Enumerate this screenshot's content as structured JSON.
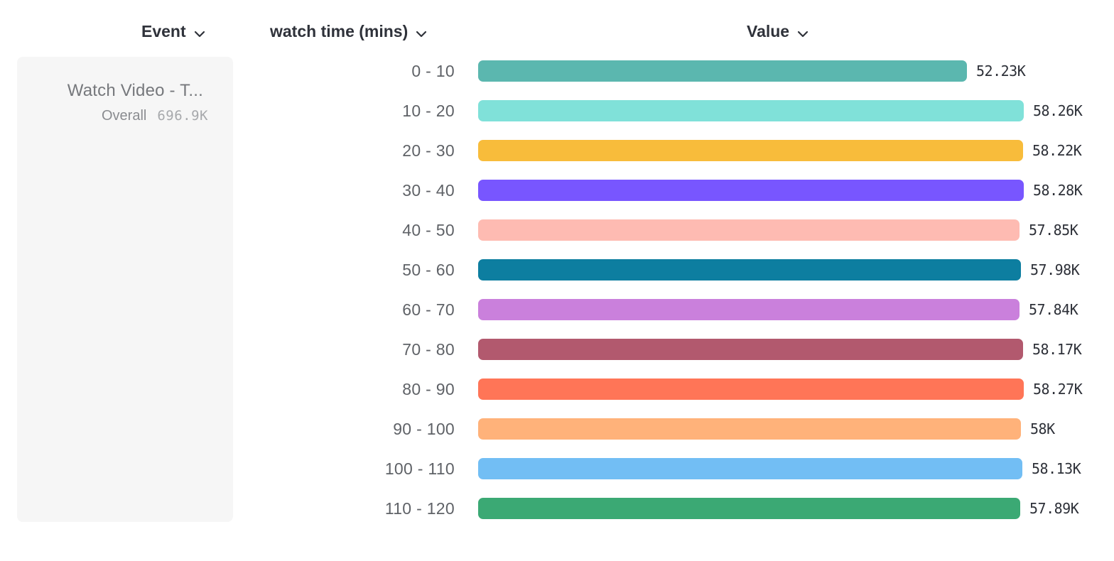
{
  "header": {
    "columns": [
      {
        "id": "event",
        "label": "Event"
      },
      {
        "id": "breakdown",
        "label": "watch time (mins)"
      },
      {
        "id": "value",
        "label": "Value"
      }
    ]
  },
  "event_panel": {
    "title": "Watch Video - T...",
    "overall_label": "Overall",
    "overall_value": "696.9K"
  },
  "chart_data": {
    "type": "bar",
    "orientation": "horizontal",
    "series_name": "Watch Video - T... / watch time (mins)",
    "categories": [
      "0 - 10",
      "10 - 20",
      "20 - 30",
      "30 - 40",
      "40 - 50",
      "50 - 60",
      "60 - 70",
      "70 - 80",
      "80 - 90",
      "90 - 100",
      "100 - 110",
      "110 - 120"
    ],
    "values": [
      52230,
      58260,
      58220,
      58280,
      57850,
      57980,
      57840,
      58170,
      58270,
      58000,
      58130,
      57890
    ],
    "value_labels": [
      "52.23K",
      "58.26K",
      "58.22K",
      "58.28K",
      "57.85K",
      "57.98K",
      "57.84K",
      "58.17K",
      "58.27K",
      "58K",
      "58.13K",
      "57.89K"
    ],
    "colors": [
      "#5BB7AF",
      "#80E1D9",
      "#F8BC3B",
      "#7856FF",
      "#FEBBB2",
      "#0D7EA0",
      "#CA80DC",
      "#B2596E",
      "#FF7557",
      "#FFB27A",
      "#72BEF4",
      "#3BA974"
    ],
    "xlim": [
      0,
      58280
    ],
    "grid": false,
    "legend_position": "left",
    "title": ""
  },
  "colors": {
    "header_text": "#2f323a",
    "category_text": "#5f6267",
    "value_text": "#2d3038",
    "panel_bg": "#f6f6f6"
  }
}
